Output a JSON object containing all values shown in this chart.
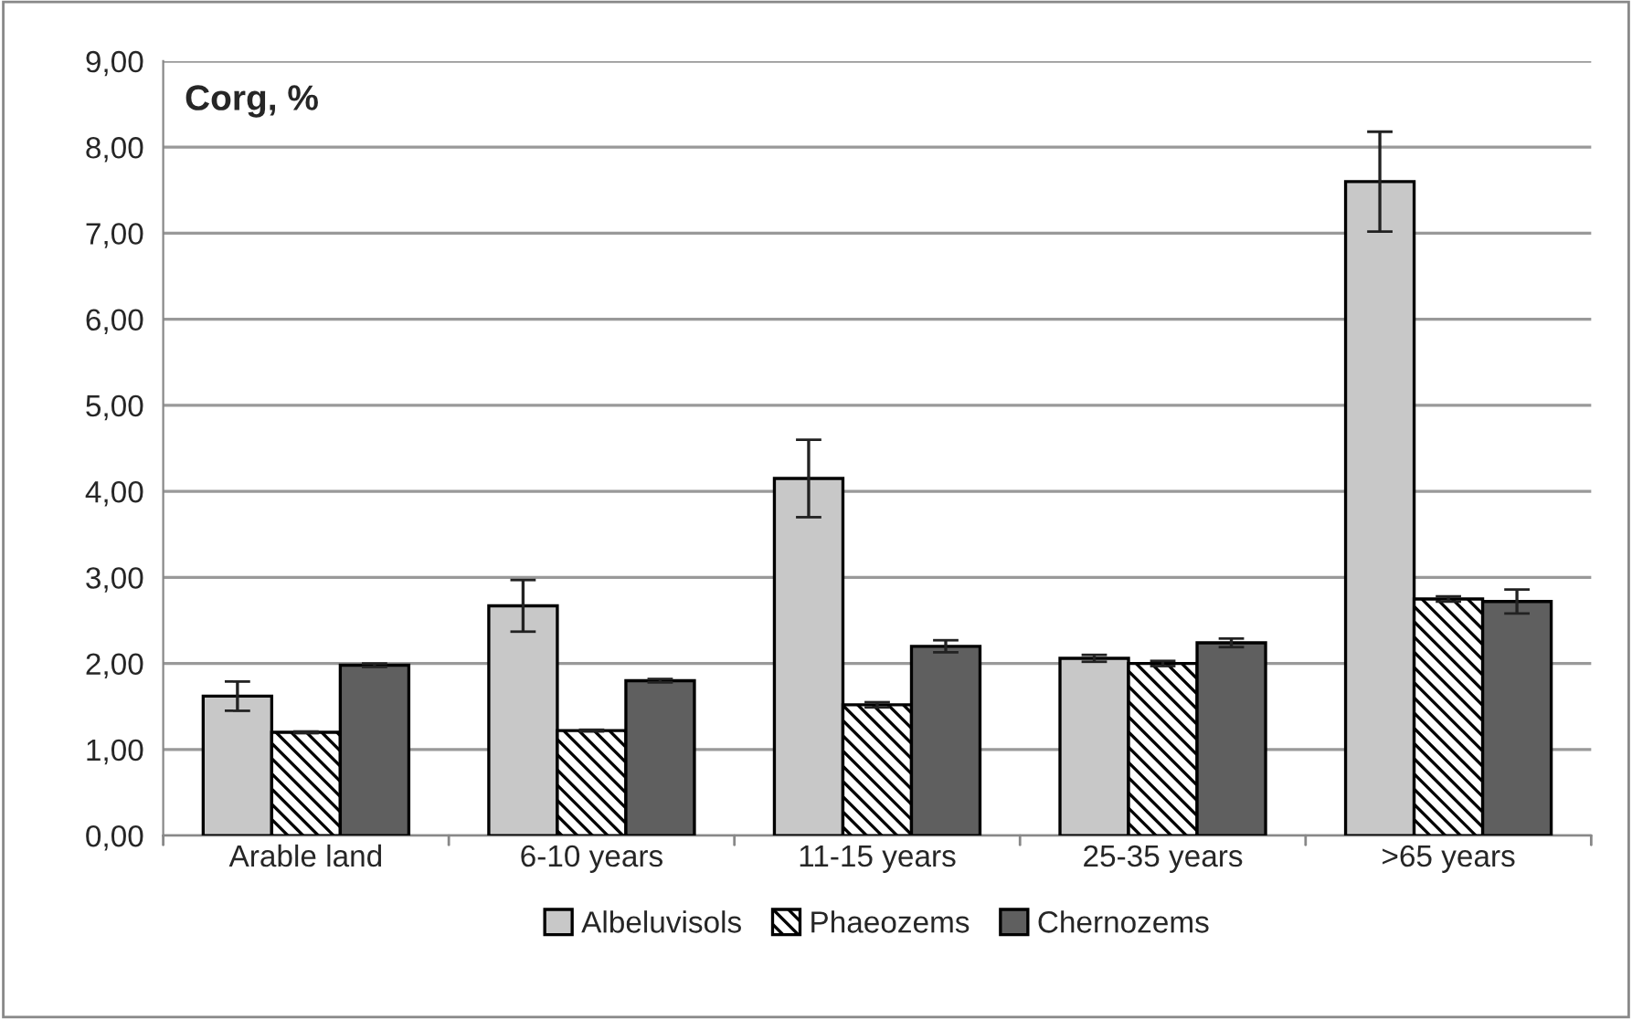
{
  "chart_data": {
    "type": "bar",
    "categories": [
      "Arable land",
      "6-10 years",
      "11-15 years",
      "25-35 years",
      ">65 years"
    ],
    "series": [
      {
        "name": "Albeluvisols",
        "color": "#c8c8c8",
        "values": [
          1.62,
          2.67,
          4.15,
          2.06,
          7.6
        ],
        "errors": [
          0.17,
          0.3,
          0.45,
          0.04,
          0.58
        ]
      },
      {
        "name": "Phaeozems",
        "color": "#000000",
        "values": [
          1.2,
          1.22,
          1.52,
          2.0,
          2.75
        ],
        "errors": [
          0.01,
          0.01,
          0.03,
          0.03,
          0.03
        ]
      },
      {
        "name": "Chernozems",
        "color": "#5f5f5f",
        "values": [
          1.98,
          1.8,
          2.2,
          2.24,
          2.72
        ],
        "errors": [
          0.02,
          0.02,
          0.07,
          0.05,
          0.14
        ]
      }
    ],
    "annotations": [
      "Corg, %"
    ],
    "ylim": [
      0,
      9
    ],
    "yticks": [
      {
        "value": 0,
        "label": "0,00"
      },
      {
        "value": 1,
        "label": "1,00"
      },
      {
        "value": 2,
        "label": "2,00"
      },
      {
        "value": 3,
        "label": "3,00"
      },
      {
        "value": 4,
        "label": "4,00"
      },
      {
        "value": 5,
        "label": "5,00"
      },
      {
        "value": 6,
        "label": "6,00"
      },
      {
        "value": 7,
        "label": "7,00"
      },
      {
        "value": 8,
        "label": "8,00"
      },
      {
        "value": 9,
        "label": "9,00"
      }
    ],
    "grid": "y",
    "legend": "bottom"
  }
}
